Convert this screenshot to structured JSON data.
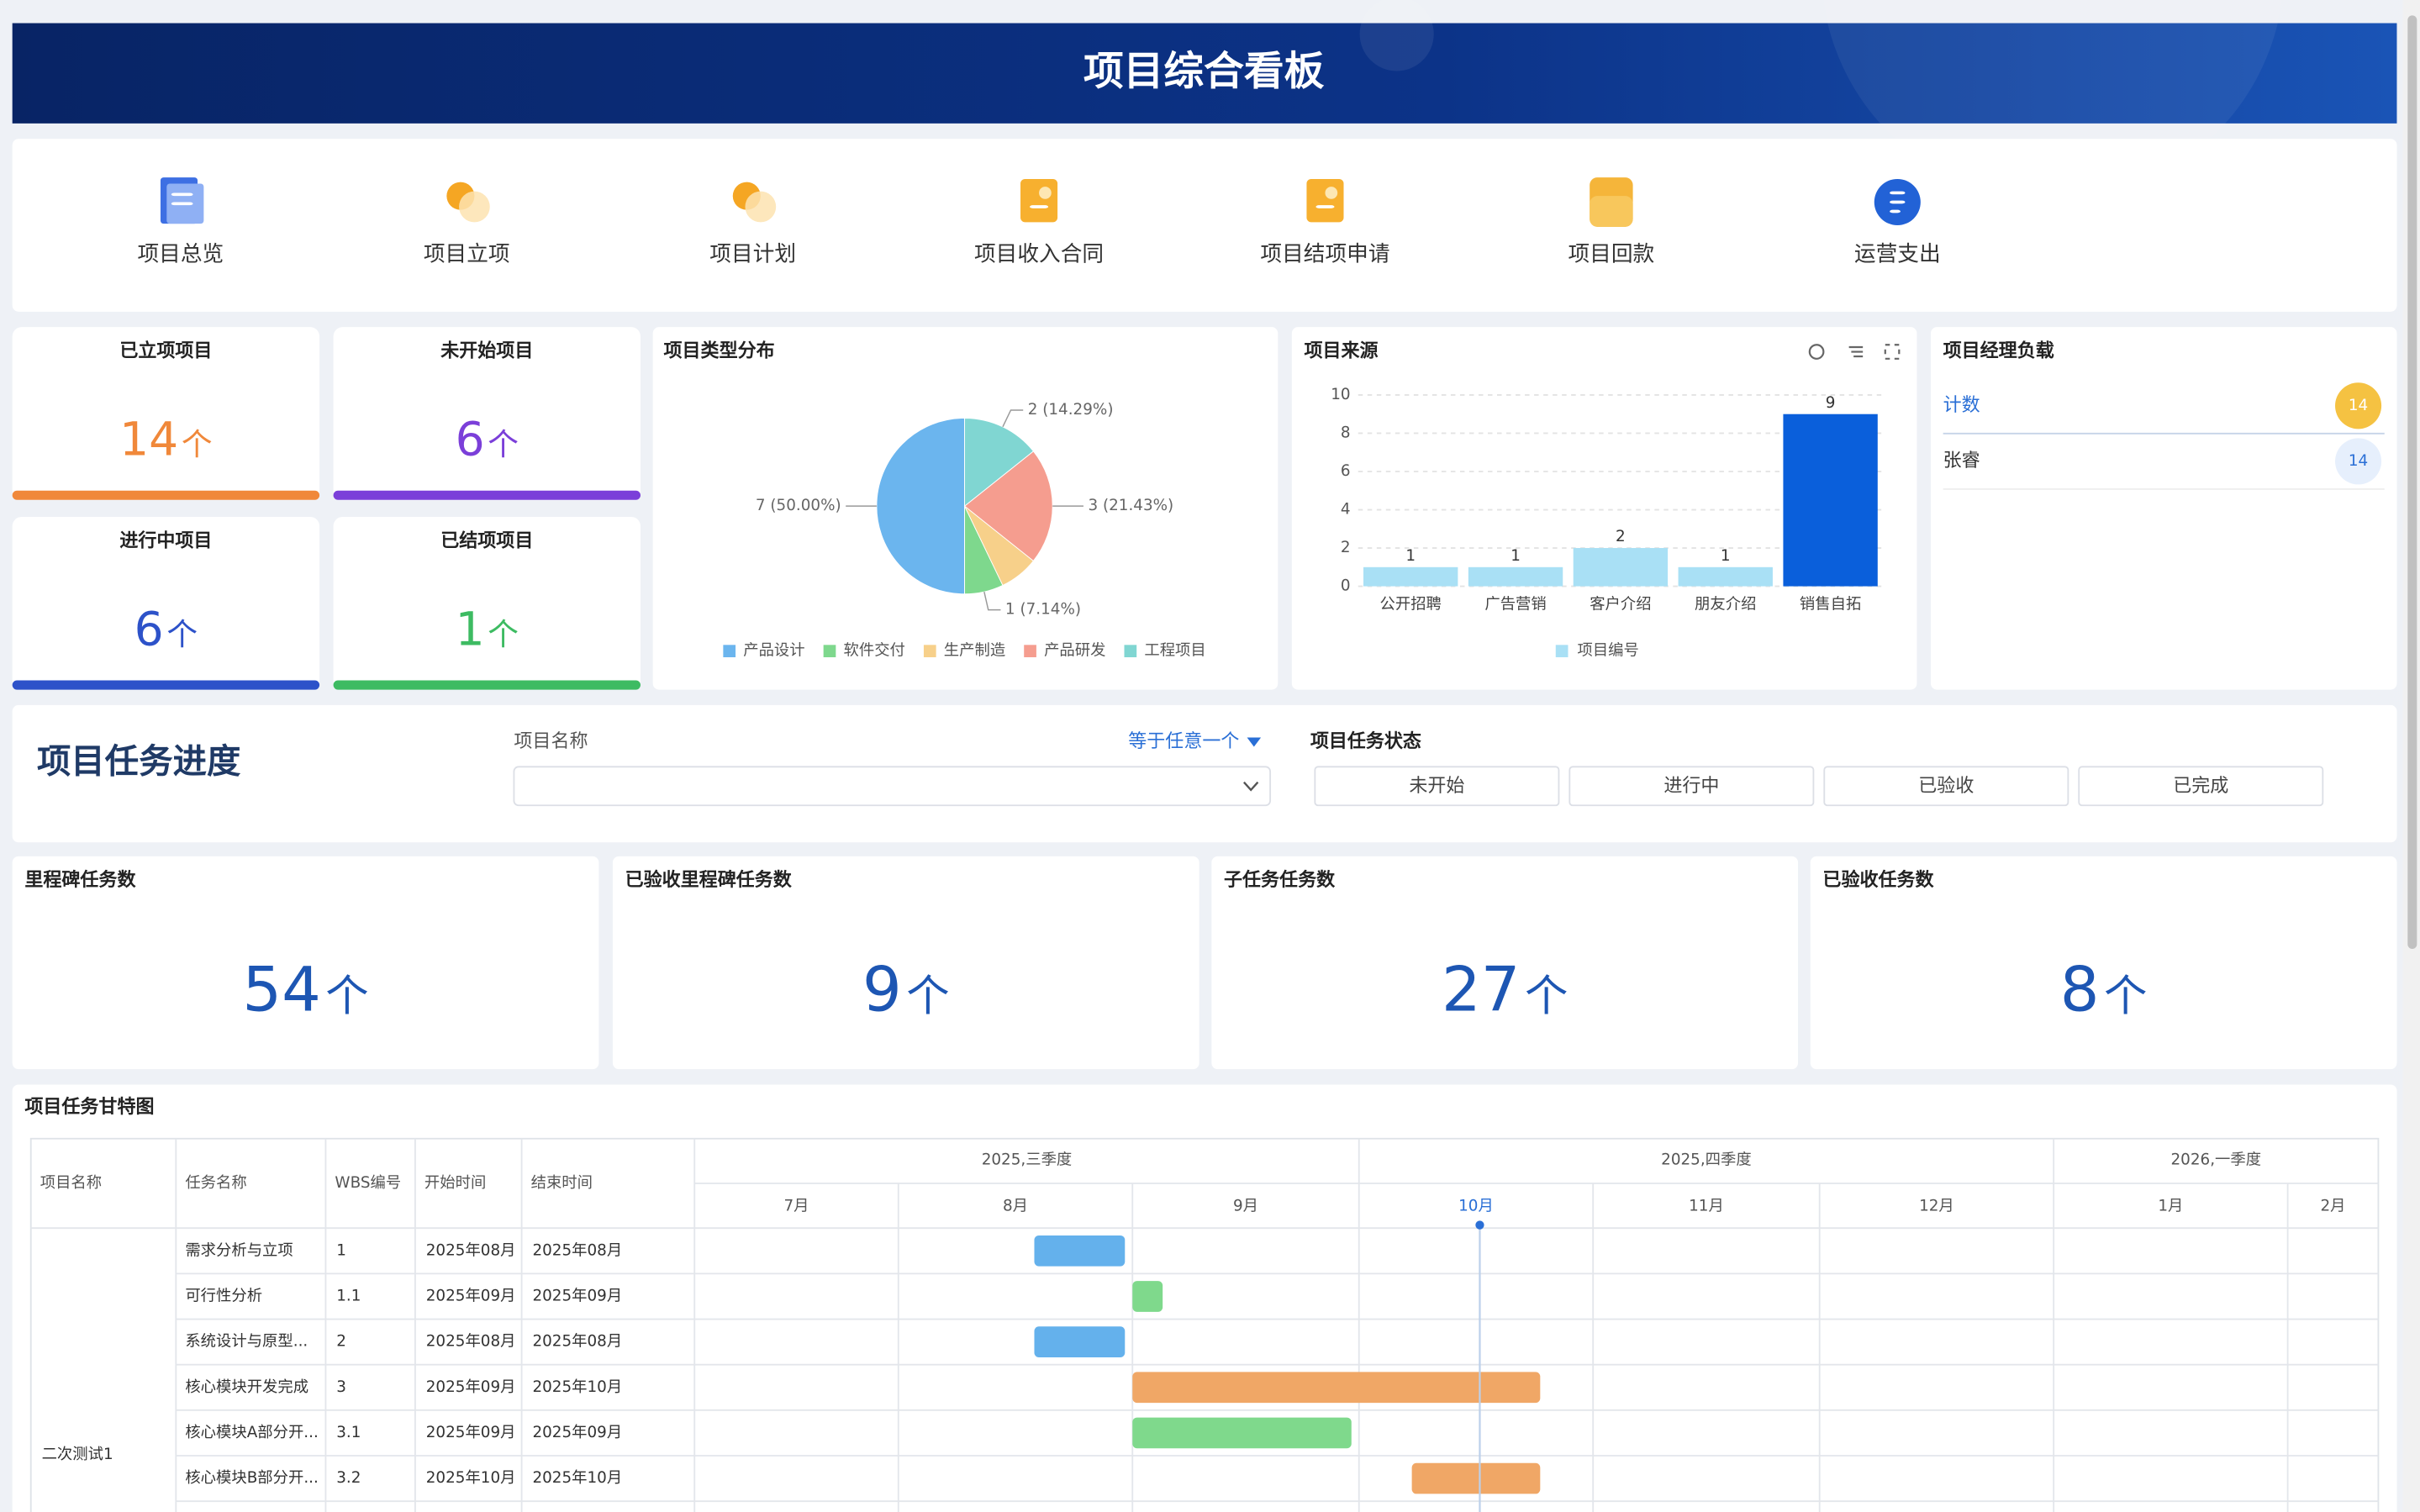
{
  "header": {
    "title": "项目综合看板"
  },
  "nav": {
    "items": [
      "项目总览",
      "项目立项",
      "项目计划",
      "项目收入合同",
      "项目结项申请",
      "项目回款",
      "运营支出"
    ]
  },
  "summary": {
    "cards": [
      {
        "title": "已立项项目",
        "value": 14,
        "unit": "个",
        "color": "#f0883a"
      },
      {
        "title": "未开始项目",
        "value": 6,
        "unit": "个",
        "color": "#7b3fd9"
      },
      {
        "title": "进行中项目",
        "value": 6,
        "unit": "个",
        "color": "#2d52c9"
      },
      {
        "title": "已结项项目",
        "value": 1,
        "unit": "个",
        "color": "#3dbb62"
      }
    ]
  },
  "chart_data": [
    {
      "type": "pie",
      "title": "项目类型分布",
      "categories": [
        "产品设计",
        "软件交付",
        "生产制造",
        "产品研发",
        "工程项目"
      ],
      "values": [
        7,
        1,
        1,
        3,
        2
      ],
      "value_labels": [
        "7 (50.00%)",
        "1 (7.14%)",
        null,
        "3 (21.43%)",
        "2 (14.29%)"
      ],
      "colors": [
        "#6bb5ee",
        "#7ed88d",
        "#f7d08a",
        "#f59d8f",
        "#80d6d2"
      ],
      "legend": "bottom"
    },
    {
      "type": "bar",
      "title": "项目来源",
      "categories": [
        "公开招聘",
        "广告营销",
        "客户介绍",
        "朋友介绍",
        "销售自拓"
      ],
      "series": [
        {
          "name": "项目编号",
          "color": "#a9e0f5",
          "values": [
            1,
            1,
            2,
            1,
            9
          ],
          "bar_colors": [
            "#a9e0f5",
            "#a9e0f5",
            "#a9e0f5",
            "#a9e0f5",
            "#0a5fdb"
          ]
        }
      ],
      "ylim": [
        0,
        10
      ],
      "yticks": [
        0,
        2,
        4,
        6,
        8,
        10
      ],
      "grid": true,
      "legend": "bottom"
    }
  ],
  "manager_load": {
    "title": "项目经理负载",
    "rows": [
      {
        "name": "计数",
        "value": 14
      },
      {
        "name": "张睿",
        "value": 14
      }
    ]
  },
  "task_filter": {
    "title": "项目任务进度",
    "field_label": "项目名称",
    "operator": "等于任意一个",
    "status_label": "项目任务状态",
    "statuses": [
      "未开始",
      "进行中",
      "已验收",
      "已完成"
    ]
  },
  "task_stats": {
    "cards": [
      {
        "title": "里程碑任务数",
        "value": 54,
        "unit": "个"
      },
      {
        "title": "已验收里程碑任务数",
        "value": 9,
        "unit": "个"
      },
      {
        "title": "子任务任务数",
        "value": 27,
        "unit": "个"
      },
      {
        "title": "已验收任务数",
        "value": 8,
        "unit": "个"
      }
    ]
  },
  "gantt": {
    "title": "项目任务甘特图",
    "columns": [
      "项目名称",
      "任务名称",
      "WBS编号",
      "开始时间",
      "结束时间"
    ],
    "xlim": [
      "2025-07-05",
      "2026-02-13"
    ],
    "quarters": [
      {
        "label": "2025,三季度",
        "start": "2025-07-01"
      },
      {
        "label": "2025,四季度",
        "start": "2025-10-01"
      },
      {
        "label": "2026,一季度",
        "start": "2026-01-01"
      }
    ],
    "months": [
      {
        "label": "7月",
        "start": "2025-07-01"
      },
      {
        "label": "8月",
        "start": "2025-08-01"
      },
      {
        "label": "9月",
        "start": "2025-09-01"
      },
      {
        "label": "10月",
        "start": "2025-10-01"
      },
      {
        "label": "11月",
        "start": "2025-11-01"
      },
      {
        "label": "12月",
        "start": "2025-12-01"
      },
      {
        "label": "1月",
        "start": "2026-01-01"
      },
      {
        "label": "2月",
        "start": "2026-02-01"
      }
    ],
    "today": "2025-10-17",
    "project": "二次测试1",
    "tasks": [
      {
        "name": "需求分析与立项",
        "wbs": "1",
        "start": "2025年08月",
        "end": "2025年08月",
        "plan": [
          "2025-08-19",
          "2025-08-31"
        ],
        "color": "#64b1ec"
      },
      {
        "name": "可行性分析",
        "wbs": "1.1",
        "start": "2025年09月",
        "end": "2025年09月",
        "plan": [
          "2025-09-01",
          "2025-09-05"
        ],
        "color": "#7fd98c"
      },
      {
        "name": "系统设计与原型...",
        "wbs": "2",
        "start": "2025年08月",
        "end": "2025年08月",
        "plan": [
          "2025-08-19",
          "2025-08-31"
        ],
        "color": "#64b1ec"
      },
      {
        "name": "核心模块开发完成",
        "wbs": "3",
        "start": "2025年09月",
        "end": "2025年10月",
        "plan": [
          "2025-09-01",
          "2025-10-25"
        ],
        "color": "#f0a766"
      },
      {
        "name": "核心模块A部分开...",
        "wbs": "3.1",
        "start": "2025年09月",
        "end": "2025年09月",
        "plan": [
          "2025-09-01",
          "2025-09-30"
        ],
        "color": "#7fd98c"
      },
      {
        "name": "核心模块B部分开...",
        "wbs": "3.2",
        "start": "2025年10月",
        "end": "2025年10月",
        "plan": [
          "2025-10-08",
          "2025-10-25"
        ],
        "color": "#f0a766"
      }
    ]
  }
}
